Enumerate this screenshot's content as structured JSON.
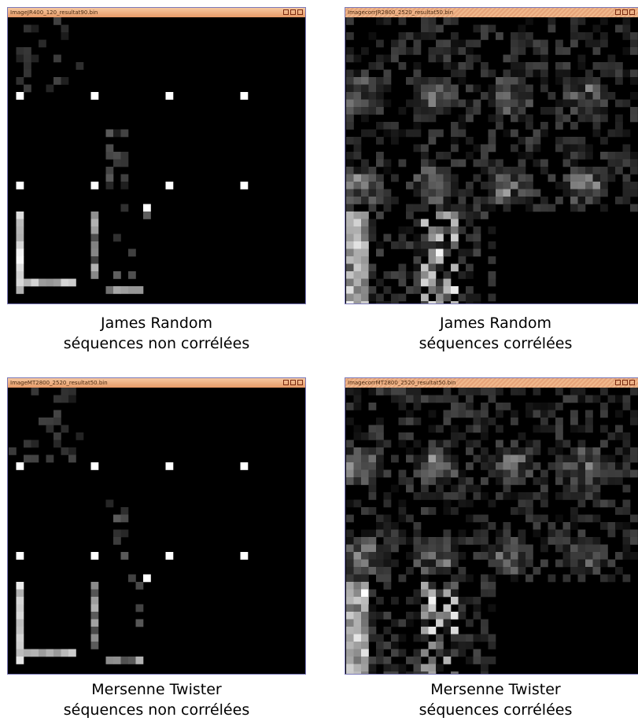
{
  "windows": [
    {
      "title": "ImageJR400_120_resultat90.bin",
      "caption": [
        "James Random",
        "séquences non corrélées"
      ]
    },
    {
      "title": "ImagecorrJR2800_2520_resultat50.bin",
      "caption": [
        "James Random",
        "séquences corrélées"
      ]
    },
    {
      "title": "ImageMT2800_2520_resultat50.bin",
      "caption": [
        "Mersenne Twister",
        "séquences non corrélées"
      ]
    },
    {
      "title": "ImagecorrMT2800_2520_resultat50.bin",
      "caption": [
        "Mersenne Twister",
        "séquences corrélées"
      ]
    }
  ]
}
